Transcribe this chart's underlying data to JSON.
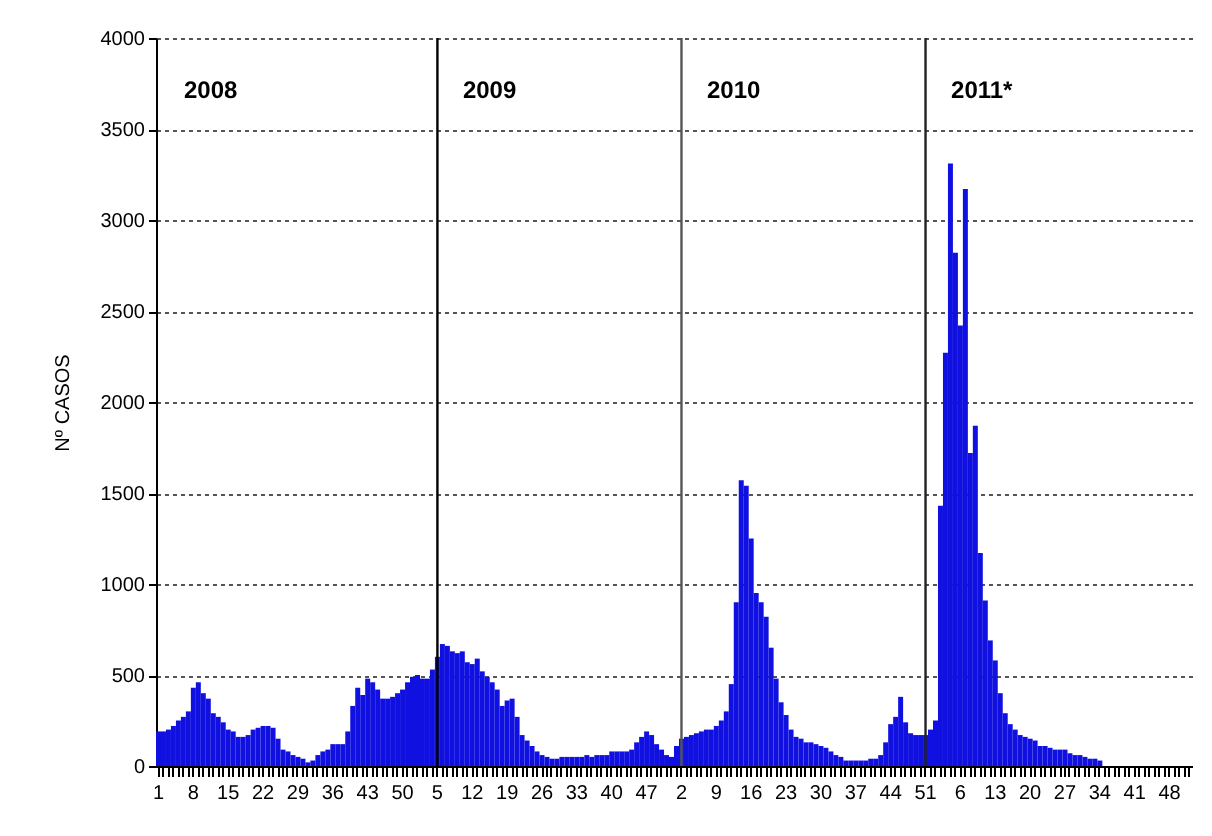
{
  "chart_data": {
    "type": "bar",
    "ylabel": "Nº CASOS",
    "categories": [
      "1",
      null,
      null,
      null,
      null,
      null,
      null,
      "8",
      null,
      null,
      null,
      null,
      null,
      null,
      "15",
      null,
      null,
      null,
      null,
      null,
      null,
      "22",
      null,
      null,
      null,
      null,
      null,
      null,
      "29",
      null,
      null,
      null,
      null,
      null,
      null,
      "36",
      null,
      null,
      null,
      null,
      null,
      null,
      "43",
      null,
      null,
      null,
      null,
      null,
      null,
      "50",
      null,
      null,
      null,
      null,
      null,
      null,
      "5",
      null,
      null,
      null,
      null,
      null,
      null,
      "12",
      null,
      null,
      null,
      null,
      null,
      null,
      "19",
      null,
      null,
      null,
      null,
      null,
      null,
      "26",
      null,
      null,
      null,
      null,
      null,
      null,
      "33",
      null,
      null,
      null,
      null,
      null,
      null,
      "40",
      null,
      null,
      null,
      null,
      null,
      null,
      "47",
      null,
      null,
      null,
      null,
      null,
      null,
      "2",
      null,
      null,
      null,
      null,
      null,
      null,
      "9",
      null,
      null,
      null,
      null,
      null,
      null,
      "16",
      null,
      null,
      null,
      null,
      null,
      null,
      "23",
      null,
      null,
      null,
      null,
      null,
      null,
      "30",
      null,
      null,
      null,
      null,
      null,
      null,
      "37",
      null,
      null,
      null,
      null,
      null,
      null,
      "44",
      null,
      null,
      null,
      null,
      null,
      null,
      "51",
      null,
      null,
      null,
      null,
      null,
      null,
      "6",
      null,
      null,
      null,
      null,
      null,
      null,
      "13",
      null,
      null,
      null,
      null,
      null,
      null,
      "20",
      null,
      null,
      null,
      null,
      null,
      null,
      "27",
      null,
      null,
      null,
      null,
      null,
      null,
      "34",
      null,
      null,
      null,
      null,
      null,
      null,
      "41",
      null,
      null,
      null,
      null,
      null,
      null,
      "48",
      null,
      null,
      null,
      null
    ],
    "values": [
      190,
      190,
      200,
      220,
      250,
      270,
      300,
      430,
      460,
      400,
      370,
      290,
      270,
      240,
      200,
      190,
      160,
      160,
      170,
      200,
      210,
      220,
      220,
      210,
      150,
      90,
      80,
      60,
      50,
      40,
      20,
      30,
      60,
      80,
      90,
      120,
      120,
      120,
      190,
      330,
      430,
      390,
      480,
      460,
      420,
      370,
      370,
      380,
      400,
      420,
      460,
      490,
      500,
      480,
      480,
      530,
      600,
      670,
      660,
      630,
      620,
      630,
      570,
      560,
      590,
      520,
      490,
      460,
      420,
      330,
      360,
      370,
      270,
      170,
      140,
      110,
      80,
      60,
      50,
      40,
      40,
      50,
      50,
      50,
      50,
      50,
      60,
      50,
      60,
      60,
      60,
      80,
      80,
      80,
      80,
      90,
      130,
      160,
      190,
      170,
      120,
      90,
      60,
      50,
      110,
      150,
      160,
      170,
      180,
      190,
      200,
      200,
      220,
      250,
      300,
      450,
      900,
      1570,
      1540,
      1250,
      950,
      900,
      820,
      650,
      480,
      350,
      280,
      200,
      160,
      150,
      130,
      130,
      120,
      110,
      100,
      80,
      60,
      50,
      30,
      30,
      30,
      30,
      30,
      40,
      40,
      60,
      130,
      230,
      270,
      380,
      240,
      180,
      170,
      170,
      170,
      200,
      250,
      1430,
      2270,
      3310,
      2820,
      2420,
      3170,
      1720,
      1870,
      1170,
      910,
      690,
      580,
      400,
      290,
      230,
      200,
      170,
      160,
      150,
      140,
      110,
      110,
      100,
      90,
      90,
      90,
      70,
      60,
      60,
      50,
      40,
      40,
      30,
      null,
      null,
      null,
      null,
      null,
      null,
      null,
      null,
      null,
      null,
      null,
      null,
      null,
      null,
      null,
      null,
      null,
      null
    ],
    "color": "#1010e0",
    "ylim": [
      0,
      4000
    ],
    "yticks": [
      0,
      500,
      1000,
      1500,
      2000,
      2500,
      3000,
      3500,
      4000
    ],
    "grid": "y",
    "ref_lines": [
      {
        "axis": "x",
        "value": "5",
        "color": "#000000"
      },
      {
        "axis": "x",
        "value": "2",
        "color": "#555555"
      },
      {
        "axis": "x",
        "value": "51",
        "color": "#222222"
      }
    ],
    "annotations": [
      "2008",
      "2009",
      "2010",
      "2011*"
    ]
  }
}
